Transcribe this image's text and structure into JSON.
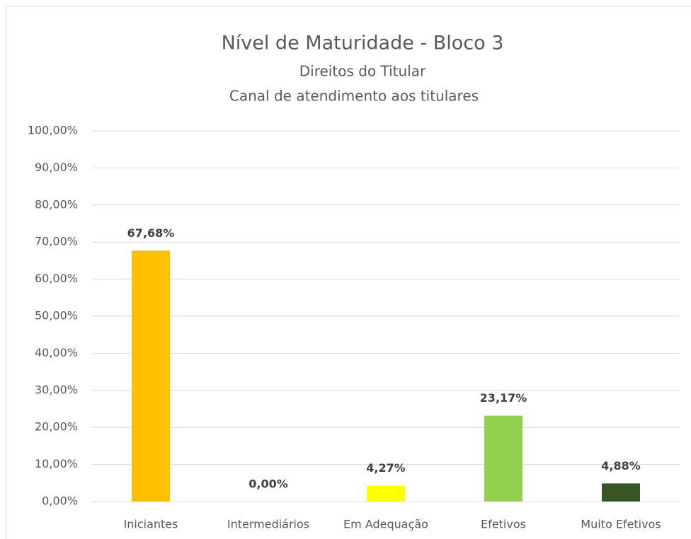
{
  "chart_data": {
    "type": "bar",
    "title": "Nível de Maturidade - Bloco 3",
    "subtitle": [
      "Direitos do Titular",
      "Canal de atendimento aos titulares"
    ],
    "categories": [
      "Iniciantes",
      "Intermediários",
      "Em Adequação",
      "Efetivos",
      "Muito Efetivos"
    ],
    "values": [
      67.68,
      0,
      4.27,
      23.17,
      4.88
    ],
    "value_labels": [
      "67,68%",
      "0,00%",
      "4,27%",
      "23,17%",
      "4,88%"
    ],
    "colors": [
      "#ffc000",
      "#ed7d31",
      "#ffff00",
      "#92d050",
      "#375623"
    ],
    "ylim": [
      0,
      100
    ],
    "yticks": [
      {
        "value": 0,
        "label": "0,00%"
      },
      {
        "value": 10,
        "label": "10,00%"
      },
      {
        "value": 20,
        "label": "20,00%"
      },
      {
        "value": 30,
        "label": "30,00%"
      },
      {
        "value": 40,
        "label": "40,00%"
      },
      {
        "value": 50,
        "label": "50,00%"
      },
      {
        "value": 60,
        "label": "60,00%"
      },
      {
        "value": 70,
        "label": "70,00%"
      },
      {
        "value": 80,
        "label": "80,00%"
      },
      {
        "value": 90,
        "label": "90,00%"
      },
      {
        "value": 100,
        "label": "100,00%"
      }
    ],
    "grid": true
  }
}
